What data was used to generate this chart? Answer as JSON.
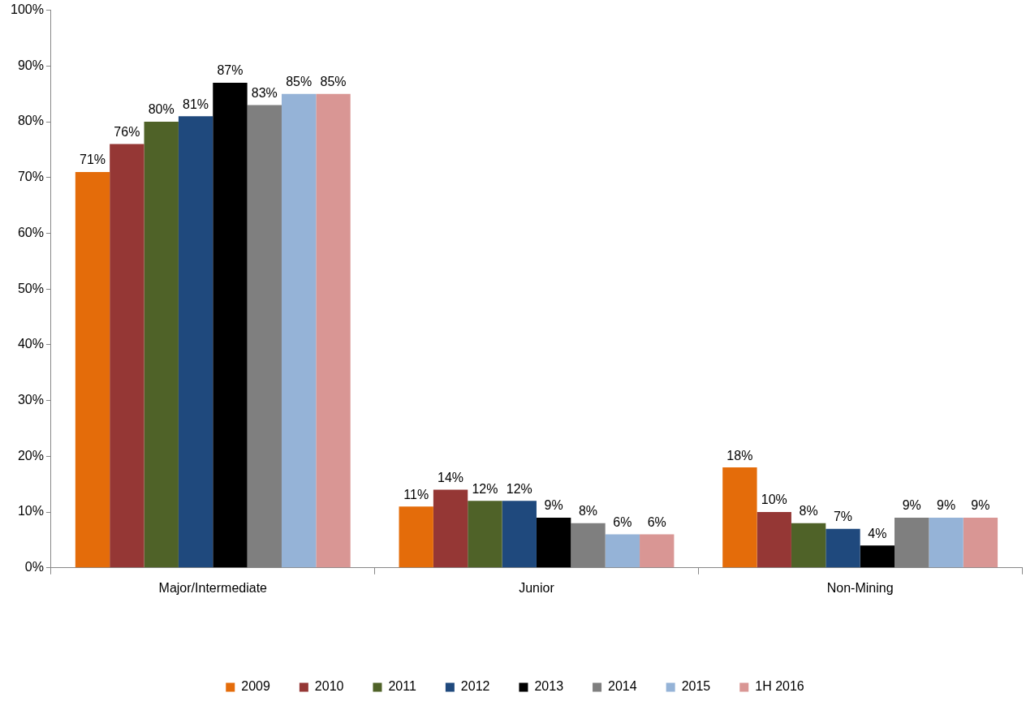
{
  "chart_data": {
    "type": "bar",
    "categories": [
      "Major/Intermediate",
      "Junior",
      "Non-Mining"
    ],
    "series": [
      {
        "name": "2009",
        "color": "#e46c0a",
        "values": [
          71,
          11,
          18
        ],
        "value_labels": [
          "71%",
          "11%",
          "18%"
        ]
      },
      {
        "name": "2010",
        "color": "#953735",
        "values": [
          76,
          14,
          10
        ],
        "value_labels": [
          "76%",
          "14%",
          "10%"
        ]
      },
      {
        "name": "2011",
        "color": "#4f6228",
        "values": [
          80,
          12,
          8
        ],
        "value_labels": [
          "80%",
          "12%",
          "8%"
        ]
      },
      {
        "name": "2012",
        "color": "#1f497d",
        "values": [
          81,
          12,
          7
        ],
        "value_labels": [
          "81%",
          "12%",
          "7%"
        ]
      },
      {
        "name": "2013",
        "color": "#000000",
        "values": [
          87,
          9,
          4
        ],
        "value_labels": [
          "87%",
          "9%",
          "4%"
        ]
      },
      {
        "name": "2014",
        "color": "#7f7f7f",
        "values": [
          83,
          8,
          9
        ],
        "value_labels": [
          "83%",
          "8%",
          "9%"
        ]
      },
      {
        "name": "2015",
        "color": "#95b3d7",
        "values": [
          85,
          6,
          9
        ],
        "value_labels": [
          "85%",
          "6%",
          "9%"
        ]
      },
      {
        "name": "1H 2016",
        "color": "#d99694",
        "values": [
          85,
          6,
          9
        ],
        "value_labels": [
          "85%",
          "6%",
          "9%"
        ]
      }
    ],
    "ylim": [
      0,
      100
    ],
    "yticks": [
      {
        "value": 0,
        "label": "0%"
      },
      {
        "value": 10,
        "label": "10%"
      },
      {
        "value": 20,
        "label": "20%"
      },
      {
        "value": 30,
        "label": "30%"
      },
      {
        "value": 40,
        "label": "40%"
      },
      {
        "value": 50,
        "label": "50%"
      },
      {
        "value": 60,
        "label": "60%"
      },
      {
        "value": 70,
        "label": "70%"
      },
      {
        "value": 80,
        "label": "80%"
      },
      {
        "value": 90,
        "label": "90%"
      },
      {
        "value": 100,
        "label": "100%"
      }
    ],
    "grid": false,
    "legend": "bottom"
  }
}
